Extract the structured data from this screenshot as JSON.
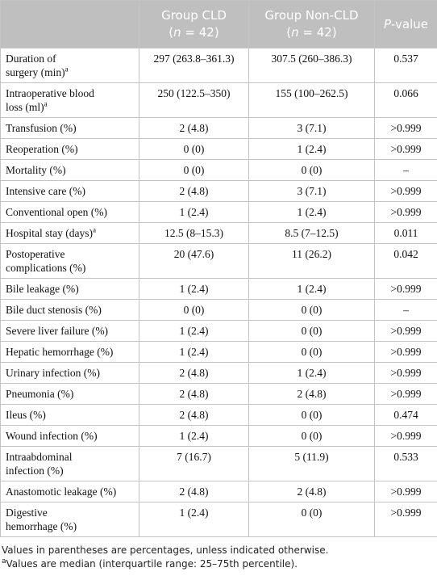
{
  "header": {
    "columns": [
      {
        "name": "Group CLD",
        "n_prefix": "(",
        "n_symbol": "n",
        "n_suffix": " = 42)"
      },
      {
        "name": "Group Non-CLD",
        "n_prefix": "(",
        "n_symbol": "n",
        "n_suffix": " = 42)"
      }
    ],
    "p_symbol": "P",
    "p_suffix": "-value"
  },
  "rows": [
    {
      "label": [
        "Duration of",
        "surgery (min)"
      ],
      "note": "a",
      "cld": "297 (263.8–361.3)",
      "non_cld": "307.5 (260–386.3)",
      "p": "0.537"
    },
    {
      "label": [
        "Intraoperative blood",
        "loss (ml)"
      ],
      "note": "a",
      "cld": "250 (122.5–350)",
      "non_cld": "155 (100–262.5)",
      "p": "0.066"
    },
    {
      "label": [
        "Transfusion (%)"
      ],
      "cld": "2 (4.8)",
      "non_cld": "3 (7.1)",
      "p": ">0.999"
    },
    {
      "label": [
        "Reoperation (%)"
      ],
      "cld": "0 (0)",
      "non_cld": "1 (2.4)",
      "p": ">0.999"
    },
    {
      "label": [
        "Mortality (%)"
      ],
      "cld": "0 (0)",
      "non_cld": "0 (0)",
      "p": "–"
    },
    {
      "label": [
        "Intensive care (%)"
      ],
      "cld": "2 (4.8)",
      "non_cld": "3 (7.1)",
      "p": ">0.999"
    },
    {
      "label": [
        "Conventional open (%)"
      ],
      "cld": "1 (2.4)",
      "non_cld": "1 (2.4)",
      "p": ">0.999"
    },
    {
      "label": [
        "Hospital stay (days)"
      ],
      "note": "a",
      "cld": "12.5 (8–15.3)",
      "non_cld": "8.5 (7–12.5)",
      "p": "0.011"
    },
    {
      "label": [
        "Postoperative",
        "complications (%)"
      ],
      "cld": "20 (47.6)",
      "non_cld": "11 (26.2)",
      "p": "0.042"
    },
    {
      "label": [
        "Bile leakage (%)"
      ],
      "cld": "1 (2.4)",
      "non_cld": "1 (2.4)",
      "p": ">0.999"
    },
    {
      "label": [
        "Bile duct stenosis (%)"
      ],
      "cld": "0 (0)",
      "non_cld": "0 (0)",
      "p": "–"
    },
    {
      "label": [
        "Severe liver failure (%)"
      ],
      "cld": "1 (2.4)",
      "non_cld": "0 (0)",
      "p": ">0.999"
    },
    {
      "label": [
        "Hepatic hemorrhage (%)"
      ],
      "cld": "1 (2.4)",
      "non_cld": "0 (0)",
      "p": ">0.999"
    },
    {
      "label": [
        "Urinary infection (%)"
      ],
      "cld": "2 (4.8)",
      "non_cld": "1 (2.4)",
      "p": ">0.999"
    },
    {
      "label": [
        "Pneumonia (%)"
      ],
      "cld": "2 (4.8)",
      "non_cld": "2 (4.8)",
      "p": ">0.999"
    },
    {
      "label": [
        "Ileus (%)"
      ],
      "cld": "2 (4.8)",
      "non_cld": "0 (0)",
      "p": "0.474"
    },
    {
      "label": [
        "Wound infection (%)"
      ],
      "cld": "1 (2.4)",
      "non_cld": "0 (0)",
      "p": ">0.999"
    },
    {
      "label": [
        "Intraabdominal",
        "infection (%)"
      ],
      "cld": "7 (16.7)",
      "non_cld": "5 (11.9)",
      "p": "0.533"
    },
    {
      "label": [
        "Anastomotic leakage (%)"
      ],
      "cld": "2 (4.8)",
      "non_cld": "2 (4.8)",
      "p": ">0.999"
    },
    {
      "label": [
        "Digestive",
        "hemorrhage (%)"
      ],
      "cld": "1 (2.4)",
      "non_cld": "0 (0)",
      "p": ">0.999"
    }
  ],
  "footnotes": {
    "general": "Values in parentheses are percentages, unless indicated otherwise.",
    "median_note": "a",
    "median_text": "Values are median (interquartile range: 25–75th percentile)."
  }
}
